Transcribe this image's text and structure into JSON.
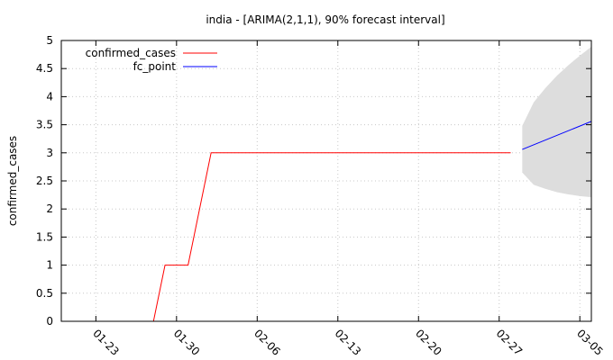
{
  "chart_data": {
    "type": "line",
    "title": "india -  [ARIMA(2,1,1), 90% forecast interval]",
    "xlabel": "",
    "ylabel": "confirmed_cases",
    "x_type": "date",
    "xlim": [
      "2020-01-20",
      "2020-03-06"
    ],
    "ylim": [
      0,
      5
    ],
    "yticks": [
      0,
      0.5,
      1,
      1.5,
      2,
      2.5,
      3,
      3.5,
      4,
      4.5,
      5
    ],
    "ytick_labels": [
      "0",
      "0.5",
      "1",
      "1.5",
      "2",
      "2.5",
      "3",
      "3.5",
      "4",
      "4.5",
      "5"
    ],
    "xticks": [
      "2020-01-23",
      "2020-01-30",
      "2020-02-06",
      "2020-02-13",
      "2020-02-20",
      "2020-02-27",
      "2020-03-05"
    ],
    "xtick_labels": [
      "01-23",
      "01-30",
      "02-06",
      "02-13",
      "02-20",
      "02-27",
      "03-05"
    ],
    "grid": true,
    "legend_position": "top-left",
    "series": [
      {
        "name": "confirmed_cases",
        "color": "#ff0000",
        "points": [
          [
            "2020-01-28",
            0
          ],
          [
            "2020-01-29",
            1
          ],
          [
            "2020-01-31",
            1
          ],
          [
            "2020-02-02",
            3
          ],
          [
            "2020-02-28",
            3
          ]
        ]
      },
      {
        "name": "fc_point",
        "color": "#0000ff",
        "points": [
          [
            "2020-02-29",
            3.06
          ],
          [
            "2020-03-06",
            3.56
          ]
        ]
      }
    ],
    "forecast_interval": {
      "color": "#dddddd",
      "x": [
        "2020-02-29",
        "2020-03-01",
        "2020-03-02",
        "2020-03-03",
        "2020-03-04",
        "2020-03-05",
        "2020-03-06"
      ],
      "upper": [
        3.48,
        3.9,
        4.15,
        4.37,
        4.56,
        4.73,
        4.89
      ],
      "lower": [
        2.65,
        2.43,
        2.36,
        2.3,
        2.26,
        2.23,
        2.21
      ]
    }
  }
}
